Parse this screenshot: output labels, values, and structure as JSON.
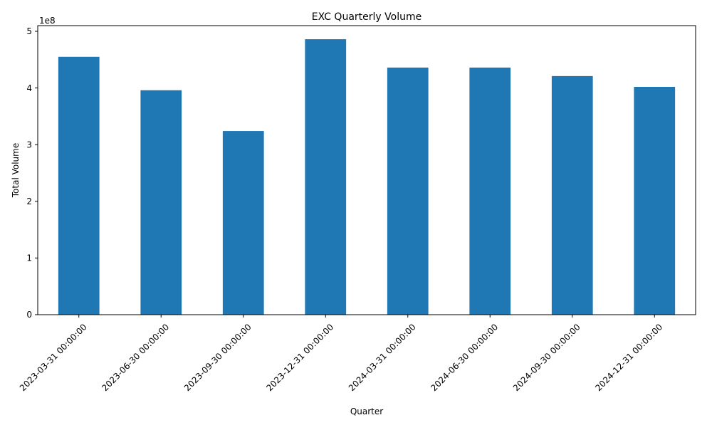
{
  "chart_data": {
    "type": "bar",
    "title": "EXC Quarterly Volume",
    "xlabel": "Quarter",
    "ylabel": "Total Volume",
    "scale_label": "1e8",
    "categories": [
      "2023-03-31 00:00:00",
      "2023-06-30 00:00:00",
      "2023-09-30 00:00:00",
      "2023-12-31 00:00:00",
      "2024-03-31 00:00:00",
      "2024-06-30 00:00:00",
      "2024-09-30 00:00:00",
      "2024-12-31 00:00:00"
    ],
    "values": [
      455000000,
      396000000,
      324000000,
      486000000,
      436000000,
      436000000,
      421000000,
      402000000
    ],
    "ylim": [
      0,
      510000000
    ],
    "yticks": [
      0,
      1,
      2,
      3,
      4,
      5
    ],
    "ytick_unit": 100000000,
    "bar_color": "#1f77b4",
    "grid": false,
    "legend": false
  }
}
